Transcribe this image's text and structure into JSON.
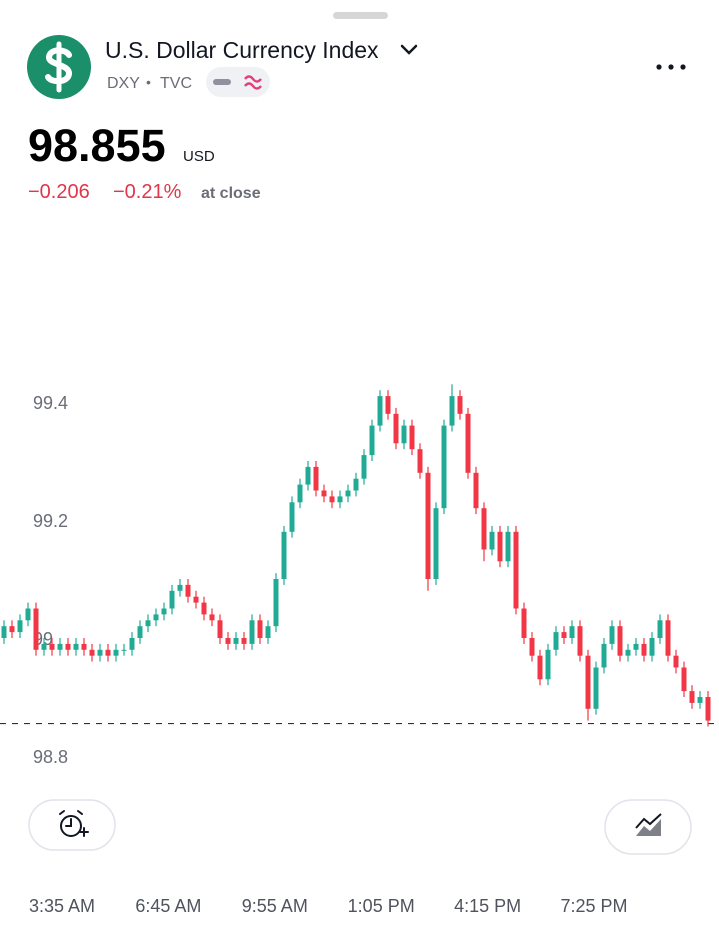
{
  "header": {
    "title": "U.S. Dollar Currency Index",
    "symbol": "DXY",
    "separator": "•",
    "exchange": "TVC",
    "price": 98.855,
    "currency": "USD",
    "change": "−0.206",
    "change_percent": "−0.21%",
    "status": "at close"
  },
  "chart_data": {
    "type": "candlestick",
    "up_color": "#22ab94",
    "down_color": "#f23645",
    "ylim": [
      98.75,
      99.7
    ],
    "yticks": [
      98.8,
      99,
      99.2,
      99.4
    ],
    "grid": false,
    "xtick_labels": [
      "3:35 AM",
      "6:45 AM",
      "9:55 AM",
      "1:05 PM",
      "4:15 PM",
      "7:25 PM"
    ],
    "candles": [
      [
        99.0,
        99.03,
        98.99,
        99.02
      ],
      [
        99.02,
        99.03,
        99.0,
        99.01
      ],
      [
        99.01,
        99.04,
        99.0,
        99.03
      ],
      [
        99.03,
        99.06,
        99.02,
        99.05
      ],
      [
        99.05,
        99.06,
        98.97,
        98.98
      ],
      [
        98.98,
        99.0,
        98.97,
        98.99
      ],
      [
        98.99,
        99.0,
        98.97,
        98.98
      ],
      [
        98.98,
        99.0,
        98.97,
        98.99
      ],
      [
        98.99,
        99.0,
        98.97,
        98.98
      ],
      [
        98.98,
        99.0,
        98.97,
        98.99
      ],
      [
        98.99,
        99.0,
        98.97,
        98.98
      ],
      [
        98.98,
        98.99,
        98.96,
        98.97
      ],
      [
        98.97,
        98.99,
        98.96,
        98.98
      ],
      [
        98.98,
        98.99,
        98.96,
        98.97
      ],
      [
        98.97,
        98.99,
        98.96,
        98.98
      ],
      [
        98.98,
        98.99,
        98.97,
        98.98
      ],
      [
        98.98,
        99.01,
        98.97,
        99.0
      ],
      [
        99.0,
        99.03,
        98.99,
        99.02
      ],
      [
        99.02,
        99.04,
        99.01,
        99.03
      ],
      [
        99.03,
        99.05,
        99.02,
        99.04
      ],
      [
        99.04,
        99.06,
        99.03,
        99.05
      ],
      [
        99.05,
        99.09,
        99.04,
        99.08
      ],
      [
        99.08,
        99.1,
        99.07,
        99.09
      ],
      [
        99.09,
        99.1,
        99.06,
        99.07
      ],
      [
        99.07,
        99.08,
        99.05,
        99.06
      ],
      [
        99.06,
        99.07,
        99.03,
        99.04
      ],
      [
        99.04,
        99.05,
        99.02,
        99.03
      ],
      [
        99.03,
        99.04,
        98.99,
        99.0
      ],
      [
        99.0,
        99.01,
        98.98,
        98.99
      ],
      [
        98.99,
        99.01,
        98.98,
        99.0
      ],
      [
        99.0,
        99.01,
        98.98,
        98.99
      ],
      [
        98.99,
        99.04,
        98.98,
        99.03
      ],
      [
        99.03,
        99.04,
        98.99,
        99.0
      ],
      [
        99.0,
        99.03,
        98.99,
        99.02
      ],
      [
        99.02,
        99.11,
        99.01,
        99.1
      ],
      [
        99.1,
        99.19,
        99.09,
        99.18
      ],
      [
        99.18,
        99.24,
        99.17,
        99.23
      ],
      [
        99.23,
        99.27,
        99.22,
        99.26
      ],
      [
        99.26,
        99.3,
        99.25,
        99.29
      ],
      [
        99.29,
        99.3,
        99.24,
        99.25
      ],
      [
        99.25,
        99.26,
        99.23,
        99.24
      ],
      [
        99.24,
        99.25,
        99.22,
        99.23
      ],
      [
        99.23,
        99.25,
        99.22,
        99.24
      ],
      [
        99.24,
        99.26,
        99.23,
        99.25
      ],
      [
        99.25,
        99.28,
        99.24,
        99.27
      ],
      [
        99.27,
        99.32,
        99.26,
        99.31
      ],
      [
        99.31,
        99.37,
        99.3,
        99.36
      ],
      [
        99.36,
        99.42,
        99.35,
        99.41
      ],
      [
        99.41,
        99.42,
        99.37,
        99.38
      ],
      [
        99.38,
        99.39,
        99.32,
        99.33
      ],
      [
        99.33,
        99.37,
        99.32,
        99.36
      ],
      [
        99.36,
        99.37,
        99.31,
        99.32
      ],
      [
        99.32,
        99.33,
        99.27,
        99.28
      ],
      [
        99.28,
        99.29,
        99.08,
        99.1
      ],
      [
        99.1,
        99.23,
        99.09,
        99.22
      ],
      [
        99.22,
        99.37,
        99.21,
        99.36
      ],
      [
        99.36,
        99.43,
        99.35,
        99.41
      ],
      [
        99.41,
        99.42,
        99.37,
        99.38
      ],
      [
        99.38,
        99.39,
        99.27,
        99.28
      ],
      [
        99.28,
        99.29,
        99.21,
        99.22
      ],
      [
        99.22,
        99.23,
        99.13,
        99.15
      ],
      [
        99.15,
        99.19,
        99.14,
        99.18
      ],
      [
        99.18,
        99.19,
        99.12,
        99.13
      ],
      [
        99.13,
        99.19,
        99.12,
        99.18
      ],
      [
        99.18,
        99.19,
        99.04,
        99.05
      ],
      [
        99.05,
        99.06,
        98.99,
        99.0
      ],
      [
        99.0,
        99.01,
        98.96,
        98.97
      ],
      [
        98.97,
        98.98,
        98.92,
        98.93
      ],
      [
        98.93,
        98.99,
        98.92,
        98.98
      ],
      [
        98.98,
        99.02,
        98.97,
        99.01
      ],
      [
        99.01,
        99.02,
        98.99,
        99.0
      ],
      [
        99.0,
        99.03,
        98.99,
        99.02
      ],
      [
        99.02,
        99.03,
        98.96,
        98.97
      ],
      [
        98.97,
        98.98,
        98.86,
        98.88
      ],
      [
        98.88,
        98.96,
        98.87,
        98.95
      ],
      [
        98.95,
        99.0,
        98.94,
        98.99
      ],
      [
        98.99,
        99.03,
        98.98,
        99.02
      ],
      [
        99.02,
        99.03,
        98.96,
        98.97
      ],
      [
        98.97,
        98.99,
        98.96,
        98.98
      ],
      [
        98.98,
        99.0,
        98.97,
        98.99
      ],
      [
        98.99,
        99.0,
        98.96,
        98.97
      ],
      [
        98.97,
        99.01,
        98.96,
        99.0
      ],
      [
        99.0,
        99.04,
        98.99,
        99.03
      ],
      [
        99.03,
        99.04,
        98.96,
        98.97
      ],
      [
        98.97,
        98.98,
        98.94,
        98.95
      ],
      [
        98.95,
        98.96,
        98.9,
        98.91
      ],
      [
        98.91,
        98.92,
        98.88,
        98.89
      ],
      [
        98.89,
        98.91,
        98.88,
        98.9
      ],
      [
        98.9,
        98.91,
        98.85,
        98.86
      ]
    ]
  }
}
